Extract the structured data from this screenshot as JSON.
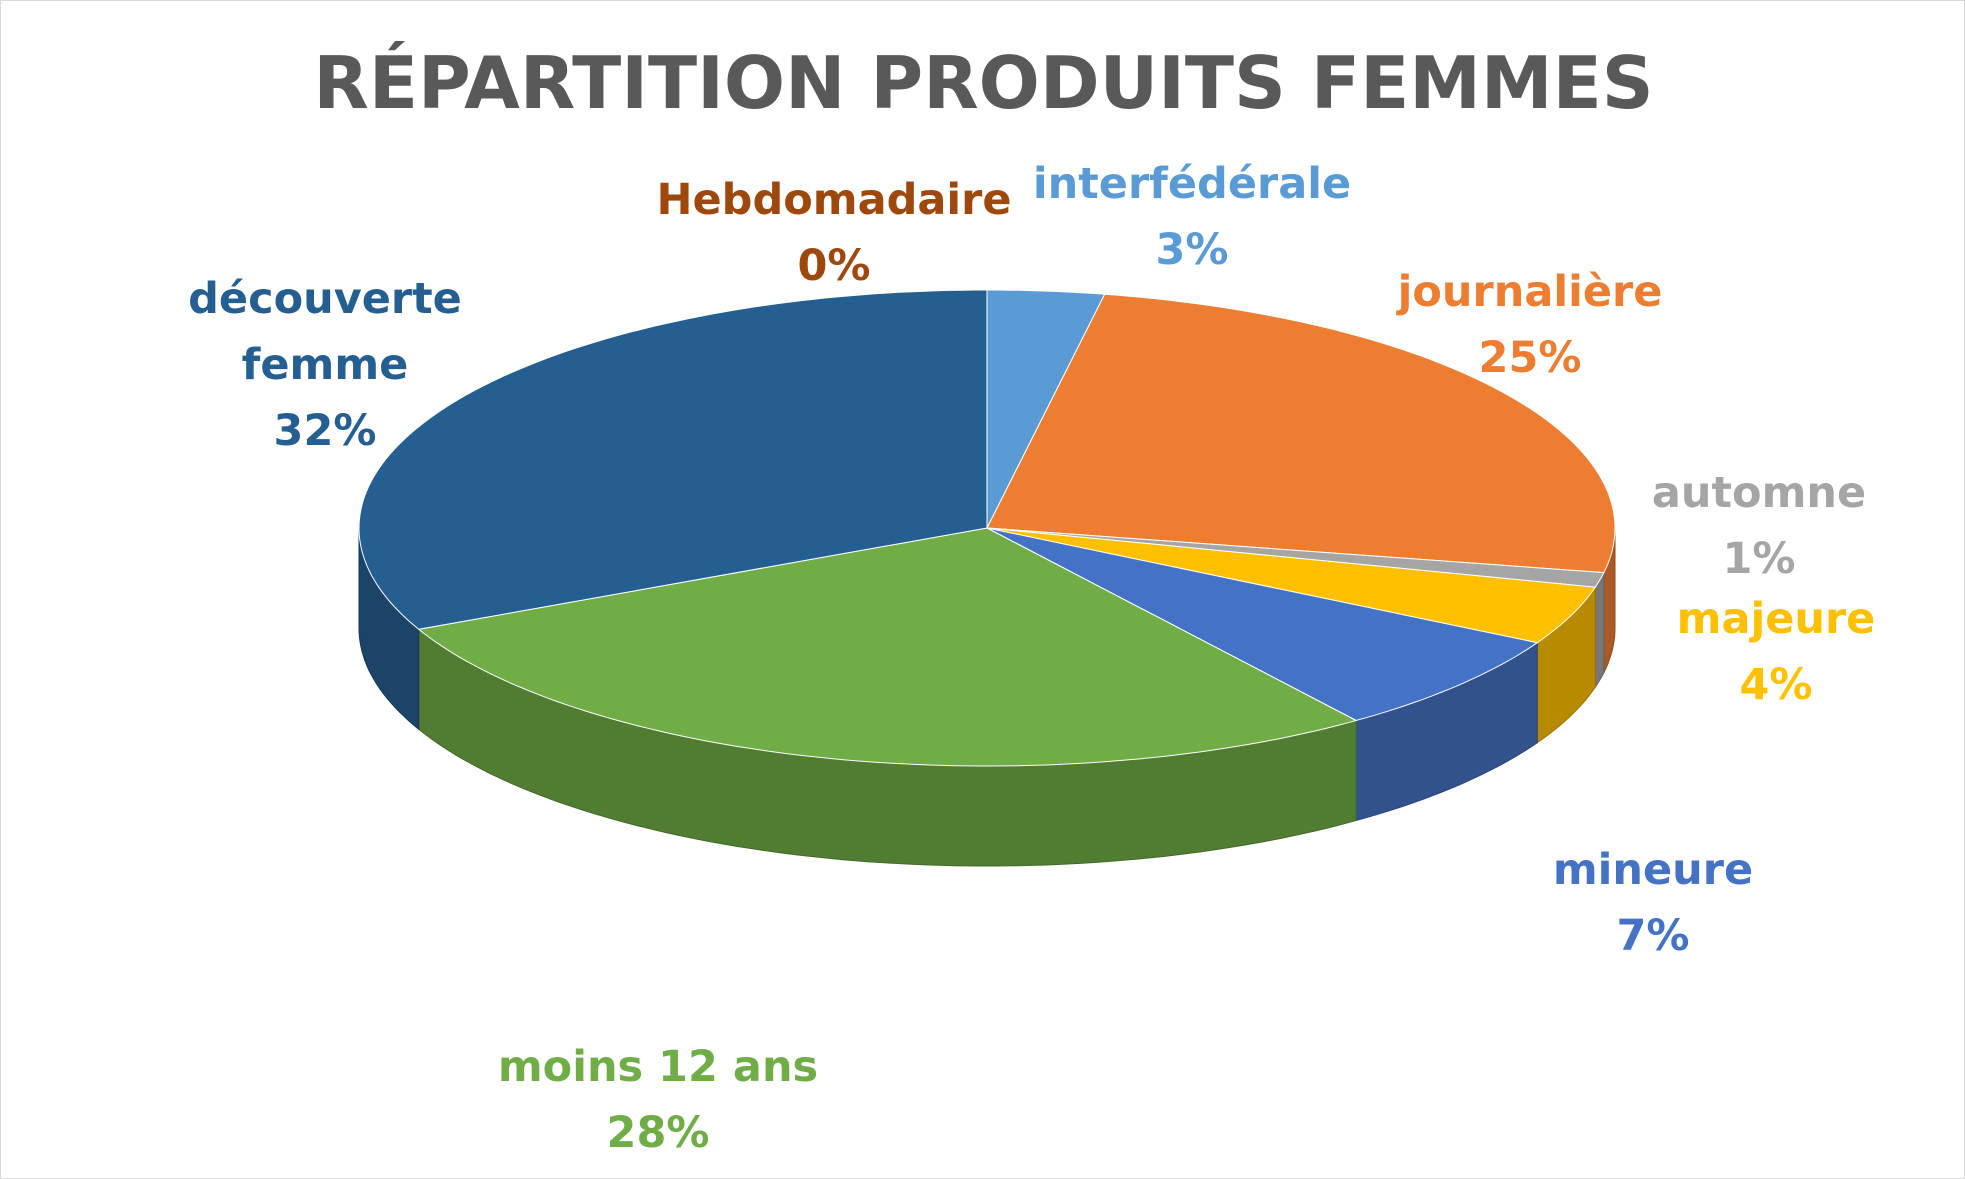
{
  "chart_data": {
    "type": "pie3d",
    "title": "RÉPARTITION PRODUITS FEMMES",
    "categories": [
      "interfédérale",
      "journalière",
      "automne",
      "majeure",
      "mineure",
      "moins 12 ans",
      "découverte femme",
      "Hebdomadaire"
    ],
    "values": [
      3,
      25,
      1,
      4,
      7,
      28,
      32,
      0
    ],
    "value_labels": [
      "3%",
      "25%",
      "1%",
      "4%",
      "7%",
      "28%",
      "32%",
      "0%"
    ],
    "colors": [
      "#5b9bd5",
      "#ed7d31",
      "#a5a5a5",
      "#ffc000",
      "#4472c4",
      "#70ad47",
      "#255e91",
      "#9e480e"
    ]
  }
}
